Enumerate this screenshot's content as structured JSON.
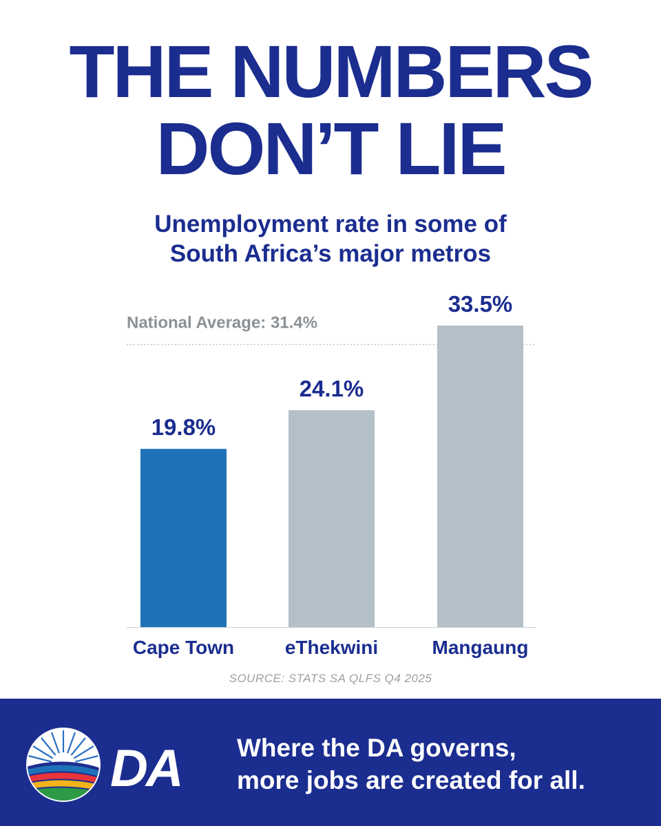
{
  "headline": {
    "line1": "THE NUMBERS",
    "line2": "DON’T LIE"
  },
  "chart_data": {
    "type": "bar",
    "title": "Unemployment rate in some of South Africa’s major metros",
    "categories": [
      "Cape Town",
      "eThekwini",
      "Mangaung"
    ],
    "values": [
      19.8,
      24.1,
      33.5
    ],
    "value_labels": [
      "19.8%",
      "24.1%",
      "33.5%"
    ],
    "reference_line": {
      "label": "National Average: 31.4%",
      "value": 31.4
    },
    "ylim": [
      0,
      33.5
    ],
    "grid": false,
    "colors": {
      "highlight": "#1f72b8",
      "other": "#b4c0c8",
      "label": "#1b2d8f",
      "reference": "#8a9196"
    }
  },
  "source": "SOURCE: STATS SA QLFS Q4 2025",
  "footer": {
    "logo_text": "DA",
    "tagline_line1": "Where the DA governs,",
    "tagline_line2": "more jobs are created for all."
  }
}
